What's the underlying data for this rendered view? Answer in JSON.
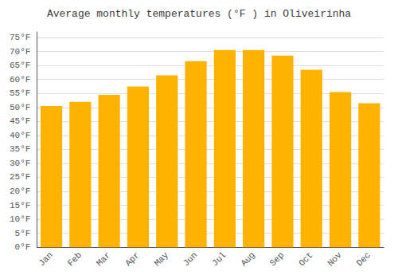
{
  "chart_data": {
    "type": "bar",
    "title": "Average monthly temperatures (°F ) in Oliveirinha",
    "categories": [
      "Jan",
      "Feb",
      "Mar",
      "Apr",
      "May",
      "Jun",
      "Jul",
      "Aug",
      "Sep",
      "Oct",
      "Nov",
      "Dec"
    ],
    "values": [
      50.5,
      52.0,
      54.5,
      57.5,
      61.5,
      66.5,
      70.5,
      70.5,
      68.5,
      63.5,
      55.5,
      51.5
    ],
    "color": "#FFB300",
    "ylim": [
      0,
      77
    ],
    "yticks": [
      {
        "value": 0,
        "label": "0°F"
      },
      {
        "value": 5,
        "label": "5°F"
      },
      {
        "value": 10,
        "label": "10°F"
      },
      {
        "value": 15,
        "label": "15°F"
      },
      {
        "value": 20,
        "label": "20°F"
      },
      {
        "value": 25,
        "label": "25°F"
      },
      {
        "value": 30,
        "label": "30°F"
      },
      {
        "value": 35,
        "label": "35°F"
      },
      {
        "value": 40,
        "label": "40°F"
      },
      {
        "value": 45,
        "label": "45°F"
      },
      {
        "value": 50,
        "label": "50°F"
      },
      {
        "value": 55,
        "label": "55°F"
      },
      {
        "value": 60,
        "label": "60°F"
      },
      {
        "value": 65,
        "label": "65°F"
      },
      {
        "value": 70,
        "label": "70°F"
      },
      {
        "value": 75,
        "label": "75°F"
      }
    ],
    "grid": true
  }
}
